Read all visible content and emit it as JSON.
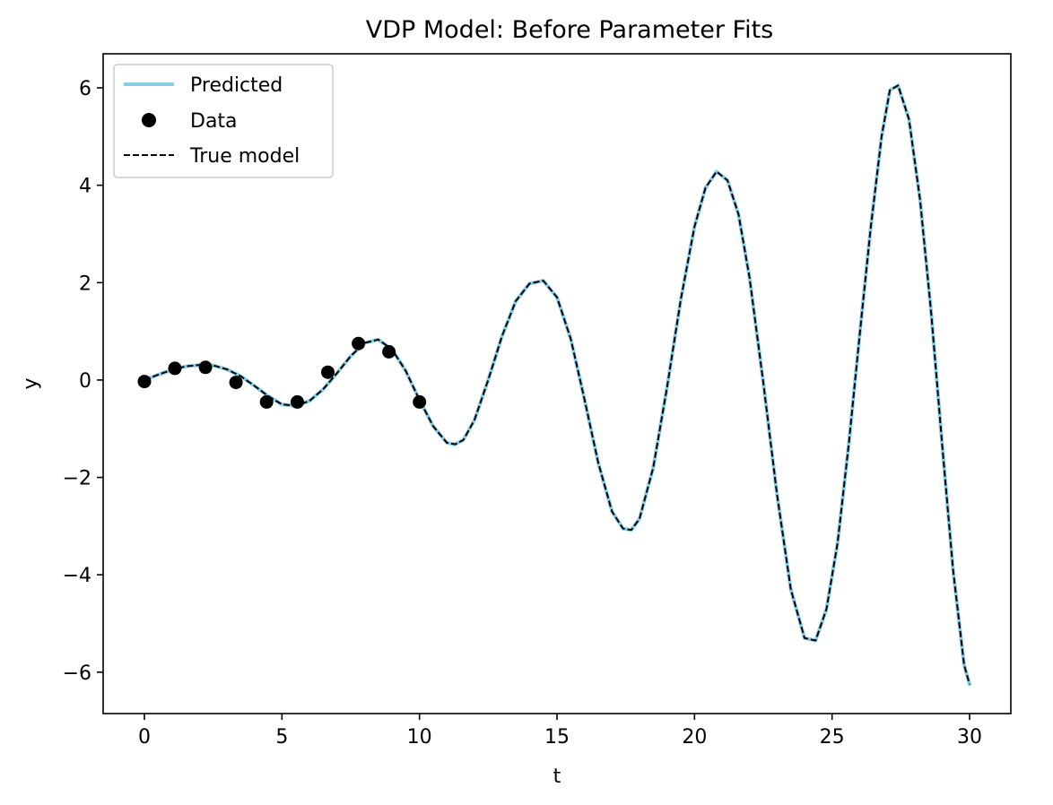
{
  "chart_data": {
    "type": "line",
    "title": "VDP Model: Before Parameter Fits",
    "xlabel": "t",
    "ylabel": "y",
    "xlim": [
      -1.5,
      31.5
    ],
    "ylim": [
      -6.85,
      6.7
    ],
    "xticks": [
      0,
      5,
      10,
      15,
      20,
      25,
      30
    ],
    "xtick_labels": [
      "0",
      "5",
      "10",
      "15",
      "20",
      "25",
      "30"
    ],
    "yticks": [
      -6,
      -4,
      -2,
      0,
      2,
      4,
      6
    ],
    "ytick_labels": [
      "−6",
      "−4",
      "−2",
      "0",
      "2",
      "4",
      "6"
    ],
    "grid": false,
    "legend_position": "top-left",
    "series": [
      {
        "name": "Predicted",
        "kind": "line",
        "color": "#87ceeb",
        "x": [
          0,
          0.5,
          1,
          1.5,
          2,
          2.5,
          3,
          3.5,
          4,
          4.5,
          5,
          5.5,
          6,
          6.5,
          7,
          7.5,
          8,
          8.5,
          9,
          9.5,
          10,
          10.5,
          11,
          11.3,
          11.6,
          12,
          12.5,
          13,
          13.5,
          14,
          14.5,
          15,
          15.5,
          16,
          16.5,
          17,
          17.4,
          17.7,
          18,
          18.5,
          19,
          19.5,
          20,
          20.4,
          20.8,
          21.2,
          21.6,
          22,
          22.5,
          23,
          23.5,
          24,
          24.4,
          24.8,
          25.2,
          25.6,
          26,
          26.4,
          26.8,
          27.1,
          27.4,
          27.8,
          28.2,
          28.6,
          29,
          29.4,
          29.8,
          30
        ],
        "y": [
          0,
          0.11,
          0.21,
          0.28,
          0.31,
          0.3,
          0.22,
          0.08,
          -0.12,
          -0.33,
          -0.5,
          -0.53,
          -0.43,
          -0.19,
          0.14,
          0.49,
          0.76,
          0.83,
          0.63,
          0.19,
          -0.41,
          -0.95,
          -1.29,
          -1.32,
          -1.23,
          -0.82,
          0.0,
          0.9,
          1.62,
          1.98,
          2.04,
          1.7,
          0.85,
          -0.4,
          -1.7,
          -2.7,
          -3.05,
          -3.08,
          -2.85,
          -1.8,
          -0.15,
          1.65,
          3.15,
          3.95,
          4.28,
          4.1,
          3.4,
          2.1,
          -0.05,
          -2.35,
          -4.3,
          -5.3,
          -5.35,
          -4.7,
          -3.35,
          -1.35,
          0.9,
          3.1,
          5.0,
          5.95,
          6.05,
          5.35,
          3.7,
          1.4,
          -1.3,
          -3.9,
          -5.85,
          -6.25
        ]
      },
      {
        "name": "Data",
        "kind": "scatter",
        "color": "#000000",
        "x": [
          0,
          1.11,
          2.22,
          3.33,
          4.44,
          5.56,
          6.67,
          7.78,
          8.89,
          10
        ],
        "y": [
          -0.03,
          0.24,
          0.26,
          -0.05,
          -0.45,
          -0.45,
          0.16,
          0.75,
          0.58,
          -0.45
        ]
      },
      {
        "name": "True model",
        "kind": "dashed-line",
        "color": "#000000",
        "x": [
          0,
          0.5,
          1,
          1.5,
          2,
          2.5,
          3,
          3.5,
          4,
          4.5,
          5,
          5.5,
          6,
          6.5,
          7,
          7.5,
          8,
          8.5,
          9,
          9.5,
          10,
          10.5,
          11,
          11.3,
          11.6,
          12,
          12.5,
          13,
          13.5,
          14,
          14.5,
          15,
          15.5,
          16,
          16.5,
          17,
          17.4,
          17.7,
          18,
          18.5,
          19,
          19.5,
          20,
          20.4,
          20.8,
          21.2,
          21.6,
          22,
          22.5,
          23,
          23.5,
          24,
          24.4,
          24.8,
          25.2,
          25.6,
          26,
          26.4,
          26.8,
          27.1,
          27.4,
          27.8,
          28.2,
          28.6,
          29,
          29.4,
          29.8,
          30
        ],
        "y": [
          0,
          0.11,
          0.21,
          0.28,
          0.31,
          0.3,
          0.22,
          0.08,
          -0.12,
          -0.33,
          -0.5,
          -0.53,
          -0.43,
          -0.19,
          0.14,
          0.49,
          0.76,
          0.83,
          0.63,
          0.19,
          -0.41,
          -0.95,
          -1.29,
          -1.32,
          -1.23,
          -0.82,
          0.0,
          0.9,
          1.62,
          1.98,
          2.04,
          1.7,
          0.85,
          -0.4,
          -1.7,
          -2.7,
          -3.05,
          -3.08,
          -2.85,
          -1.8,
          -0.15,
          1.65,
          3.15,
          3.95,
          4.28,
          4.1,
          3.4,
          2.1,
          -0.05,
          -2.35,
          -4.3,
          -5.3,
          -5.35,
          -4.7,
          -3.35,
          -1.35,
          0.9,
          3.1,
          5.0,
          5.95,
          6.05,
          5.35,
          3.7,
          1.4,
          -1.3,
          -3.9,
          -5.85,
          -6.25
        ]
      }
    ]
  }
}
